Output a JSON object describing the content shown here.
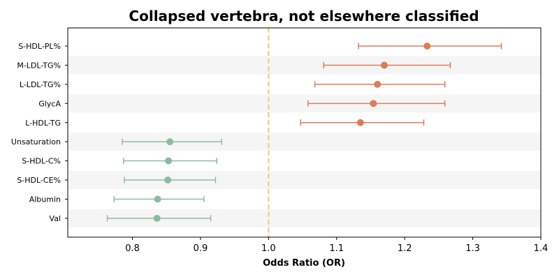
{
  "chart_data": {
    "type": "forest-plot",
    "title": "Collapsed vertebra, not elsewhere classified",
    "xlabel": "Odds Ratio (OR)",
    "ylabel": "",
    "xlim": [
      0.705,
      1.4
    ],
    "xticks": [
      "0.8",
      "0.9",
      "1.0",
      "1.1",
      "1.2",
      "1.3",
      "1.4"
    ],
    "reference_line": 1.0,
    "grid": false,
    "colors": {
      "positive": "#E07B5A",
      "negative": "#8DBBA1",
      "reference": "#F2C57C",
      "band": "#F5F5F5",
      "axis": "#000000"
    },
    "rows": [
      {
        "label": "S-HDL-PL%",
        "or": 1.233,
        "ci_low": 1.132,
        "ci_high": 1.342,
        "direction": "positive"
      },
      {
        "label": "M-LDL-TG%",
        "or": 1.17,
        "ci_low": 1.081,
        "ci_high": 1.267,
        "direction": "positive"
      },
      {
        "label": "L-LDL-TG%",
        "or": 1.16,
        "ci_low": 1.068,
        "ci_high": 1.259,
        "direction": "positive"
      },
      {
        "label": "GlycA",
        "or": 1.154,
        "ci_low": 1.058,
        "ci_high": 1.259,
        "direction": "positive"
      },
      {
        "label": "L-HDL-TG",
        "or": 1.135,
        "ci_low": 1.047,
        "ci_high": 1.228,
        "direction": "positive"
      },
      {
        "label": "Unsaturation",
        "or": 0.855,
        "ci_low": 0.785,
        "ci_high": 0.931,
        "direction": "negative"
      },
      {
        "label": "S-HDL-C%",
        "or": 0.853,
        "ci_low": 0.787,
        "ci_high": 0.924,
        "direction": "negative"
      },
      {
        "label": "S-HDL-CE%",
        "or": 0.852,
        "ci_low": 0.788,
        "ci_high": 0.922,
        "direction": "negative"
      },
      {
        "label": "Albumin",
        "or": 0.837,
        "ci_low": 0.773,
        "ci_high": 0.905,
        "direction": "negative"
      },
      {
        "label": "Val",
        "or": 0.836,
        "ci_low": 0.763,
        "ci_high": 0.915,
        "direction": "negative"
      }
    ]
  }
}
